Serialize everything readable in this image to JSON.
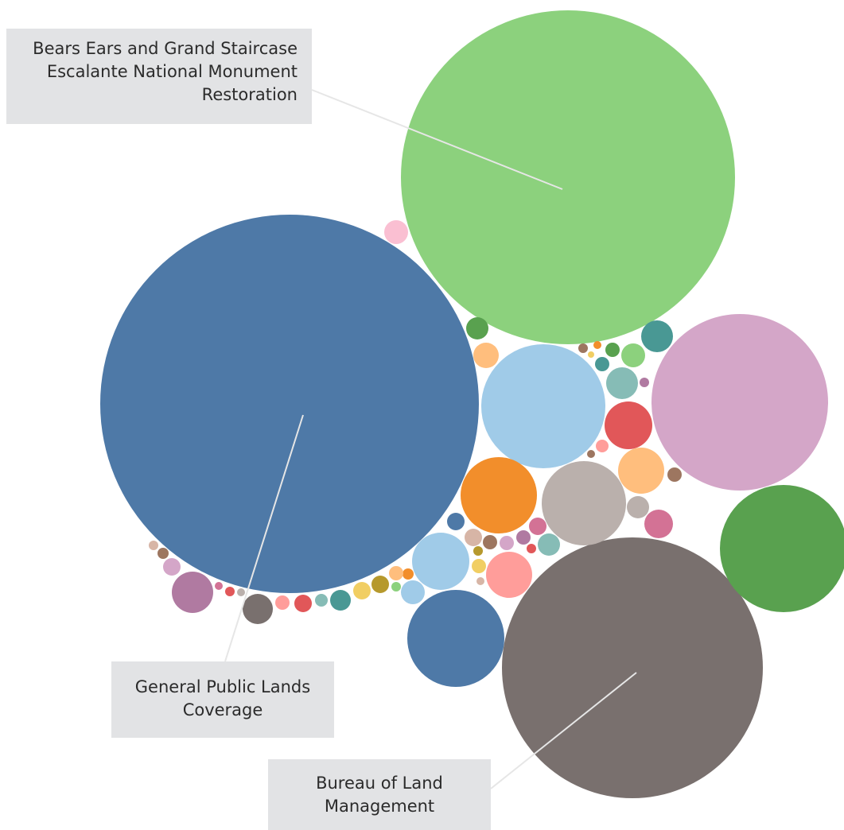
{
  "chart_data": {
    "type": "bubble",
    "title": "",
    "colors": [
      "#4e79a7",
      "#8cd17d",
      "#d4a6c8",
      "#59a14f",
      "#79706e",
      "#a0cbe8",
      "#f28e2b",
      "#bab0ac",
      "#e15759",
      "#ffbe7d",
      "#86bcb6",
      "#499894",
      "#d37295",
      "#ff9d9a",
      "#b07aa1",
      "#fabfd2",
      "#f1ce63",
      "#b6992d",
      "#9d7660",
      "#d7b5a6"
    ],
    "bubbles": [
      {
        "label": "General Public Lands Coverage",
        "color": "#4e79a7"
      },
      {
        "label": "Bears Ears and Grand Staircase Escalante National Monument Restoration",
        "color": "#8cd17d"
      },
      {
        "label": "Bureau of Land Management",
        "color": "#79706e"
      },
      {
        "label": "",
        "color": "#d4a6c8"
      },
      {
        "label": "",
        "color": "#a0cbe8"
      },
      {
        "label": "",
        "color": "#59a14f"
      },
      {
        "label": "",
        "color": "#bab0ac"
      },
      {
        "label": "",
        "color": "#4e79a7"
      },
      {
        "label": "",
        "color": "#f28e2b"
      },
      {
        "label": "",
        "color": "#a0cbe8"
      },
      {
        "label": "",
        "color": "#ff9d9a"
      },
      {
        "label": "",
        "color": "#e15759"
      },
      {
        "label": "",
        "color": "#ffbe7d"
      },
      {
        "label": "",
        "color": "#b07aa1"
      }
    ],
    "annotations": [
      {
        "target": "Bears Ears and Grand Staircase Escalante National Monument Restoration",
        "lines": [
          "Bears Ears and Grand Staircase",
          "Escalante National Monument",
          "Restoration"
        ]
      },
      {
        "target": "General Public Lands Coverage",
        "lines": [
          "General Public Lands",
          "Coverage"
        ]
      },
      {
        "target": "Bureau of Land Management",
        "lines": [
          "Bureau of Land",
          "Management"
        ]
      }
    ]
  }
}
